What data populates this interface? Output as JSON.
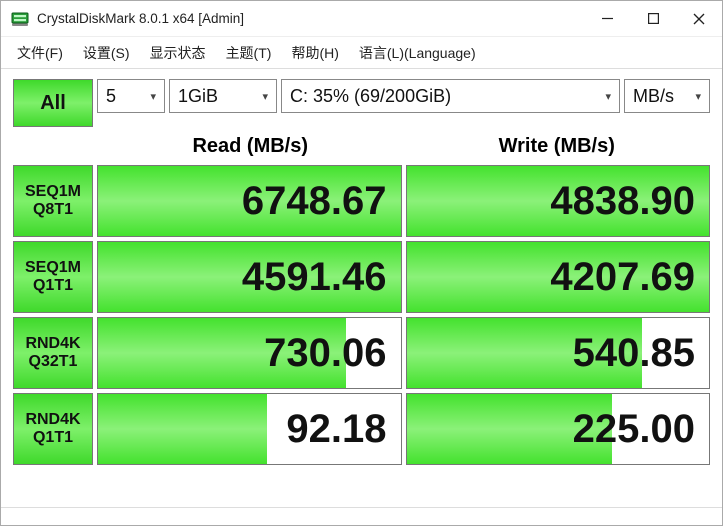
{
  "window": {
    "title": "CrystalDiskMark 8.0.1 x64 [Admin]"
  },
  "menu": {
    "file": "文件(F)",
    "settings": "设置(S)",
    "state": "显示状态",
    "theme": "主题(T)",
    "help": "帮助(H)",
    "language": "语言(L)(Language)"
  },
  "controls": {
    "all": "All",
    "loops": "5",
    "size": "1GiB",
    "drive": "C: 35% (69/200GiB)",
    "unit": "MB/s"
  },
  "headers": {
    "read": "Read (MB/s)",
    "write": "Write (MB/s)"
  },
  "tests": [
    {
      "label1": "SEQ1M",
      "label2": "Q8T1",
      "read": "6748.67",
      "write": "4838.90",
      "read_fill": 100,
      "write_fill": 100
    },
    {
      "label1": "SEQ1M",
      "label2": "Q1T1",
      "read": "4591.46",
      "write": "4207.69",
      "read_fill": 100,
      "write_fill": 100
    },
    {
      "label1": "RND4K",
      "label2": "Q32T1",
      "read": "730.06",
      "write": "540.85",
      "read_fill": 82,
      "write_fill": 78
    },
    {
      "label1": "RND4K",
      "label2": "Q1T1",
      "read": "92.18",
      "write": "225.00",
      "read_fill": 56,
      "write_fill": 68
    }
  ],
  "colors": {
    "accent_green": "#3fd92b",
    "border": "#777777",
    "text": "#111111",
    "background": "#ffffff"
  }
}
